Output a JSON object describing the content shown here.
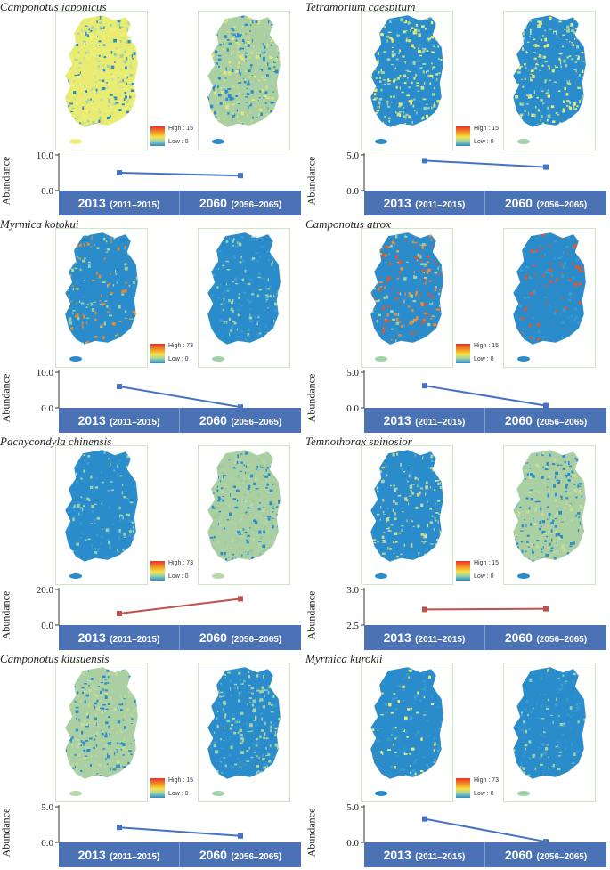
{
  "legend_high_label": "High",
  "legend_low_label": "Low : 0",
  "axis_label": "Abundance",
  "x_categories": [
    {
      "year": "2013",
      "range": "(2011–2015)"
    },
    {
      "year": "2060",
      "range": "(2056–2065)"
    }
  ],
  "colors": {
    "blue_line": "#4472c4",
    "red_line": "#c0504d",
    "header_bar": "#4a72b5",
    "map_low": "#2a8ccb",
    "map_high": "#e8312a"
  },
  "panels": [
    {
      "species": "Camponotus japonicus",
      "legend_high": "High : 15",
      "legend_low": "Low : 0"
    },
    {
      "species": "Tetramorium caespitum",
      "legend_high": "High : 15",
      "legend_low": "Low : 0"
    },
    {
      "species": "Myrmica kotokui",
      "legend_high": "High : 73",
      "legend_low": "Low : 0"
    },
    {
      "species": "Camponotus atrox",
      "legend_high": "High : 15",
      "legend_low": "Low : 0"
    },
    {
      "species": "Pachycondyla chinensis",
      "legend_high": "High : 73",
      "legend_low": "Low : 0"
    },
    {
      "species": "Temnothorax spinosior",
      "legend_high": "High : 15",
      "legend_low": "Low : 0"
    },
    {
      "species": "Camponotus kiusuensis",
      "legend_high": "High : 15",
      "legend_low": "Low : 0"
    },
    {
      "species": "Myrmica kurokii",
      "legend_high": "High : 73",
      "legend_low": "Low : 0"
    }
  ],
  "chart_data": [
    {
      "type": "line",
      "title": "Camponotus japonicus",
      "ylabel": "Abundance",
      "categories": [
        "2013 (2011–2015)",
        "2060 (2056–2065)"
      ],
      "values": [
        5.0,
        4.2
      ],
      "ylim": [
        0,
        10
      ],
      "yticks": [
        "0.0",
        "10.0"
      ],
      "color": "#4472c4"
    },
    {
      "type": "line",
      "title": "Tetramorium caespitum",
      "ylabel": "Abundance",
      "categories": [
        "2013 (2011–2015)",
        "2060 (2056–2065)"
      ],
      "values": [
        4.2,
        3.3
      ],
      "ylim": [
        0,
        5
      ],
      "yticks": [
        "0.0",
        "5.0"
      ],
      "color": "#4472c4"
    },
    {
      "type": "line",
      "title": "Myrmica kotokui",
      "ylabel": "Abundance",
      "categories": [
        "2013 (2011–2015)",
        "2060 (2056–2065)"
      ],
      "values": [
        6.0,
        0.2
      ],
      "ylim": [
        0,
        10
      ],
      "yticks": [
        "0.0",
        "10.0"
      ],
      "color": "#4472c4"
    },
    {
      "type": "line",
      "title": "Camponotus atrox",
      "ylabel": "Abundance",
      "categories": [
        "2013 (2011–2015)",
        "2060 (2056–2065)"
      ],
      "values": [
        3.1,
        0.3
      ],
      "ylim": [
        0,
        5
      ],
      "yticks": [
        "0.0",
        "5.0"
      ],
      "color": "#4472c4"
    },
    {
      "type": "line",
      "title": "Pachycondyla chinensis",
      "ylabel": "Abundance",
      "categories": [
        "2013 (2011–2015)",
        "2060 (2056–2065)"
      ],
      "values": [
        6.5,
        14.8
      ],
      "ylim": [
        0,
        20
      ],
      "yticks": [
        "0.0",
        "20.0"
      ],
      "color": "#c0504d"
    },
    {
      "type": "line",
      "title": "Temnothorax spinosior",
      "ylabel": "Abundance",
      "categories": [
        "2013 (2011–2015)",
        "2060 (2056–2065)"
      ],
      "values": [
        2.72,
        2.73
      ],
      "ylim": [
        2.5,
        3.0
      ],
      "yticks": [
        "2.5",
        "3.0"
      ],
      "color": "#c0504d"
    },
    {
      "type": "line",
      "title": "Camponotus kiusuensis",
      "ylabel": "Abundance",
      "categories": [
        "2013 (2011–2015)",
        "2060 (2056–2065)"
      ],
      "values": [
        2.1,
        0.9
      ],
      "ylim": [
        0,
        5
      ],
      "yticks": [
        "0.0",
        "5.0"
      ],
      "color": "#4472c4"
    },
    {
      "type": "line",
      "title": "Myrmica kurokii",
      "ylabel": "Abundance",
      "categories": [
        "2013 (2011–2015)",
        "2060 (2056–2065)"
      ],
      "values": [
        3.3,
        0.1
      ],
      "ylim": [
        0,
        5
      ],
      "yticks": [
        "0.0",
        "5.0"
      ],
      "color": "#4472c4"
    }
  ]
}
